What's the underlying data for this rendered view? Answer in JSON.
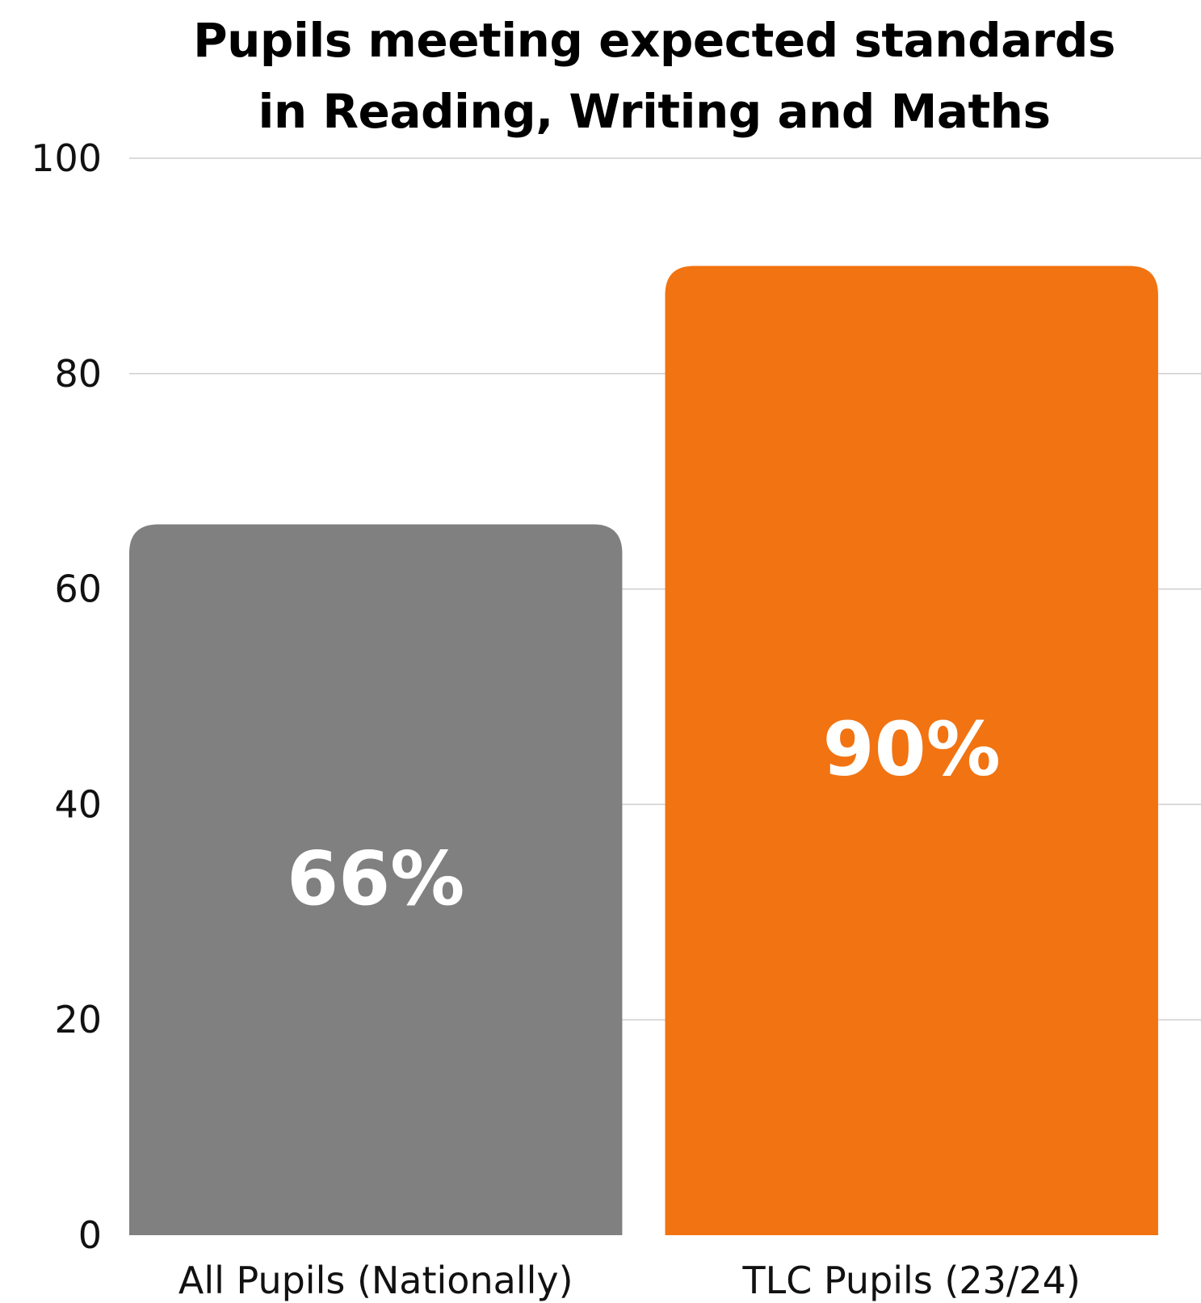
{
  "chart_data": {
    "type": "bar",
    "title_lines": [
      "Pupils meeting expected standards",
      "in Reading, Writing and Maths"
    ],
    "categories": [
      "All Pupils (Nationally)",
      "TLC Pupils (23/24)"
    ],
    "values": [
      66,
      90
    ],
    "value_labels": [
      "66%",
      "90%"
    ],
    "colors": [
      "#808080",
      "#F27311"
    ],
    "xlabel": "",
    "ylabel": "",
    "ylim": [
      0,
      100
    ],
    "yticks": [
      0,
      20,
      40,
      60,
      80,
      100
    ],
    "grid": true
  }
}
